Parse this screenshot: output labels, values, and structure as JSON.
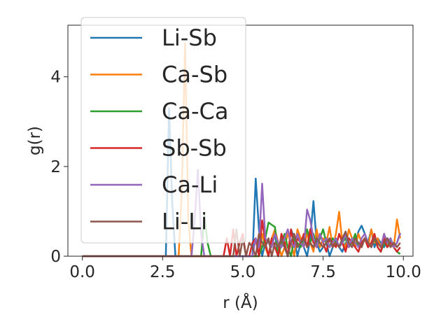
{
  "chart_data": {
    "type": "line",
    "title": "",
    "xlabel": "r (Å)",
    "ylabel": "g(r)",
    "xlim": [
      -0.45,
      10.3
    ],
    "ylim": [
      0,
      5.15
    ],
    "xticks": [
      {
        "value": 0.0,
        "label": "0.0"
      },
      {
        "value": 2.5,
        "label": "2.5"
      },
      {
        "value": 5.0,
        "label": "5.0"
      },
      {
        "value": 7.5,
        "label": "7.5"
      },
      {
        "value": 10.0,
        "label": "10.0"
      }
    ],
    "yticks": [
      {
        "value": 0,
        "label": "0"
      },
      {
        "value": 2,
        "label": "2"
      },
      {
        "value": 4,
        "label": "4"
      }
    ],
    "grid": false,
    "legend_position": "top-left",
    "series": [
      {
        "name": "Li-Sb",
        "color": "#1f77b4",
        "x": [
          0,
          2.6,
          2.7,
          2.8,
          2.9,
          3.0,
          5.3,
          5.4,
          5.5,
          5.6,
          5.7,
          5.8,
          5.9,
          6.0,
          6.1,
          6.2,
          6.3,
          6.4,
          6.5,
          6.6,
          6.7,
          6.8,
          6.9,
          7.0,
          7.1,
          7.2,
          7.3,
          7.4,
          7.5,
          7.6,
          7.7,
          7.8,
          7.9,
          8.0,
          8.1,
          8.2,
          8.3,
          8.4,
          8.5,
          8.6,
          8.7,
          8.8,
          8.9,
          9.0,
          9.1,
          9.2,
          9.3,
          9.4,
          9.5,
          9.6,
          9.7,
          9.8,
          9.9
        ],
        "y": [
          0,
          0,
          3.3,
          1.2,
          0,
          0,
          0,
          1.73,
          0.6,
          0,
          0.3,
          0,
          0.4,
          0.5,
          0,
          0.3,
          0.2,
          0,
          0.6,
          0.4,
          0,
          0.3,
          0.2,
          0,
          0.4,
          1.23,
          0.3,
          0.1,
          0.2,
          0.3,
          0,
          0.2,
          0.4,
          0.2,
          0.1,
          0.3,
          0.2,
          0.4,
          0.2,
          0.55,
          0.68,
          0.5,
          0.3,
          0.6,
          0.2,
          0.4,
          0.3,
          0.2,
          0.4,
          0.3,
          0.2,
          0.3,
          0.52
        ]
      },
      {
        "name": "Ca-Sb",
        "color": "#ff7f0e",
        "x": [
          0,
          3.0,
          3.1,
          3.2,
          3.3,
          3.4,
          3.5,
          5.5,
          5.6,
          5.7,
          5.8,
          5.9,
          6.0,
          6.1,
          6.2,
          6.3,
          6.4,
          6.5,
          6.6,
          6.7,
          6.8,
          6.9,
          7.0,
          7.1,
          7.2,
          7.3,
          7.4,
          7.5,
          7.6,
          7.7,
          7.8,
          7.9,
          8.0,
          8.1,
          8.2,
          8.3,
          8.4,
          8.5,
          8.6,
          8.7,
          8.8,
          8.9,
          9.0,
          9.1,
          9.2,
          9.3,
          9.4,
          9.5,
          9.6,
          9.7,
          9.8,
          9.9
        ],
        "y": [
          0,
          0,
          1.5,
          4.75,
          0.8,
          0,
          0,
          0,
          0.5,
          0.2,
          0,
          0.4,
          0.6,
          0.3,
          0,
          0.2,
          0.5,
          0.3,
          0,
          0.6,
          0.4,
          0.2,
          0.5,
          0.3,
          0.1,
          0.6,
          0.2,
          0.4,
          0.3,
          0.65,
          0.2,
          0.5,
          0.99,
          0.3,
          0.2,
          0.6,
          0.4,
          0.2,
          0.5,
          0.3,
          0.4,
          0.2,
          0.6,
          0.3,
          0.4,
          0.2,
          0.5,
          0.3,
          0.4,
          0.2,
          0.82,
          0.4
        ]
      },
      {
        "name": "Ca-Ca",
        "color": "#2ca02c",
        "x": [
          0,
          3.7,
          3.8,
          3.9,
          4.0,
          5.5,
          5.6,
          5.7,
          5.8,
          5.9,
          6.0,
          6.1,
          6.2,
          6.3,
          6.4,
          6.5,
          6.6,
          6.7,
          6.8,
          6.9,
          7.0,
          7.1,
          7.2,
          7.3,
          7.4,
          7.5,
          7.6,
          7.7,
          7.8,
          7.9,
          8.0,
          8.1,
          8.2,
          8.3,
          8.4,
          8.5,
          8.6,
          8.7,
          8.8,
          8.9,
          9.0,
          9.1,
          9.2,
          9.3,
          9.4,
          9.5,
          9.6,
          9.7,
          9.8,
          9.9
        ],
        "y": [
          0,
          0,
          0.9,
          0.3,
          0,
          0,
          0.2,
          0.4,
          0.75,
          0.7,
          0.65,
          0,
          0.3,
          0.5,
          0.2,
          0,
          0.4,
          0.3,
          0.2,
          0.4,
          0.6,
          0.3,
          0.5,
          0.2,
          0.4,
          0.6,
          0.3,
          0.2,
          0.4,
          0.3,
          0.2,
          0.3,
          0.4,
          0.2,
          0.3,
          0.5,
          0.2,
          0.3,
          0.4,
          0.2,
          0.3,
          0.4,
          0.2,
          0.1,
          0.3,
          0.2,
          0.4,
          0.2,
          0.1,
          0.05
        ]
      },
      {
        "name": "Sb-Sb",
        "color": "#d62728",
        "x": [
          0,
          4.4,
          4.5,
          4.6,
          4.7,
          4.8,
          4.9,
          5.0,
          5.1,
          5.2,
          5.3,
          5.4,
          5.5,
          5.6,
          5.7,
          5.8,
          5.9,
          6.0,
          6.1,
          6.2,
          6.3,
          6.4,
          6.5,
          6.6,
          6.7,
          6.8,
          6.9,
          7.0,
          7.1,
          7.2,
          7.3,
          7.4,
          7.5,
          7.6,
          7.7,
          7.8,
          7.9,
          8.0,
          8.1,
          8.2,
          8.3,
          8.4,
          8.5,
          8.6,
          8.7,
          8.8,
          8.9,
          9.0,
          9.1,
          9.2,
          9.3,
          9.4,
          9.5,
          9.6,
          9.7,
          9.8,
          9.9
        ],
        "y": [
          0,
          0,
          0.4,
          0,
          0.6,
          0,
          0.3,
          0.5,
          0,
          0,
          0.3,
          0.4,
          0,
          0.8,
          0.3,
          0,
          0.4,
          0.2,
          0,
          0.5,
          0.3,
          0,
          0.6,
          0.2,
          0.4,
          0.3,
          0.5,
          0.2,
          0.6,
          0.3,
          0.2,
          0.5,
          0.3,
          0.1,
          0.4,
          0.3,
          0.2,
          0.5,
          0.3,
          0.1,
          0.4,
          0.3,
          0.2,
          0.1,
          0.3,
          0.4,
          0.2,
          0.3,
          0.5,
          0.2,
          0.1,
          0.4,
          0.2,
          0.3,
          0.2,
          0.1,
          0.2
        ]
      },
      {
        "name": "Ca-Li",
        "color": "#9467bd",
        "x": [
          0,
          3.4,
          3.5,
          3.6,
          3.7,
          3.8,
          5.3,
          5.4,
          5.5,
          5.6,
          5.7,
          5.8,
          5.9,
          6.0,
          6.1,
          6.2,
          6.3,
          6.4,
          6.5,
          6.6,
          6.7,
          6.8,
          6.9,
          7.0,
          7.1,
          7.2,
          7.3,
          7.4,
          7.5,
          7.6,
          7.7,
          7.8,
          7.9,
          8.0,
          8.1,
          8.2,
          8.3,
          8.4,
          8.5,
          8.6,
          8.7,
          8.8,
          8.9,
          9.0,
          9.1,
          9.2,
          9.3,
          9.4,
          9.5,
          9.6,
          9.7,
          9.8,
          9.9
        ],
        "y": [
          0,
          0,
          0.8,
          1.93,
          0.5,
          0,
          0,
          0.4,
          0.2,
          1.62,
          0.4,
          0.3,
          0.2,
          0.5,
          0.3,
          0.2,
          0.4,
          0.6,
          0.3,
          0.2,
          0.5,
          0.3,
          0.2,
          1.04,
          0.8,
          0.4,
          0.2,
          0.5,
          0.3,
          0.4,
          0.2,
          0.3,
          0.4,
          0.2,
          0.3,
          0.5,
          0.2,
          0.4,
          0.3,
          0.2,
          0.4,
          0.5,
          0.3,
          0.2,
          0.4,
          0.3,
          0.2,
          0.5,
          0.3,
          0.4,
          0.2,
          0.3,
          0.5
        ]
      },
      {
        "name": "Li-Li",
        "color": "#8c564b",
        "x": [
          0,
          4.7,
          4.8,
          4.9,
          5.0,
          5.1,
          5.2,
          5.3,
          5.4,
          5.5,
          5.6,
          5.7,
          5.8,
          5.9,
          6.0,
          6.1,
          6.2,
          6.3,
          6.4,
          6.5,
          6.6,
          6.7,
          6.8,
          6.9,
          7.0,
          7.1,
          7.2,
          7.3,
          7.4,
          7.5,
          7.6,
          7.7,
          7.8,
          7.9,
          8.0,
          8.1,
          8.2,
          8.3,
          8.4,
          8.5,
          8.6,
          8.7,
          8.8,
          8.9,
          9.0,
          9.1,
          9.2,
          9.3,
          9.4,
          9.5,
          9.6,
          9.7,
          9.8,
          9.9
        ],
        "y": [
          0,
          0,
          0.6,
          0,
          0.4,
          0,
          0.3,
          0.2,
          0,
          0.5,
          0.3,
          0.2,
          0.4,
          0,
          0.3,
          0.2,
          0.4,
          0.2,
          0,
          0.3,
          0.5,
          0.2,
          0.3,
          0.4,
          0.2,
          0.3,
          0.2,
          0.4,
          0.3,
          0.2,
          0.3,
          0.4,
          0.2,
          0.3,
          0.2,
          0.4,
          0.55,
          0.3,
          0.2,
          0.4,
          0.3,
          0.2,
          0.4,
          0.3,
          0.2,
          0.4,
          0.3,
          0.2,
          0.3,
          0.4,
          0.2,
          0.3,
          0.2,
          0.3
        ]
      }
    ]
  }
}
